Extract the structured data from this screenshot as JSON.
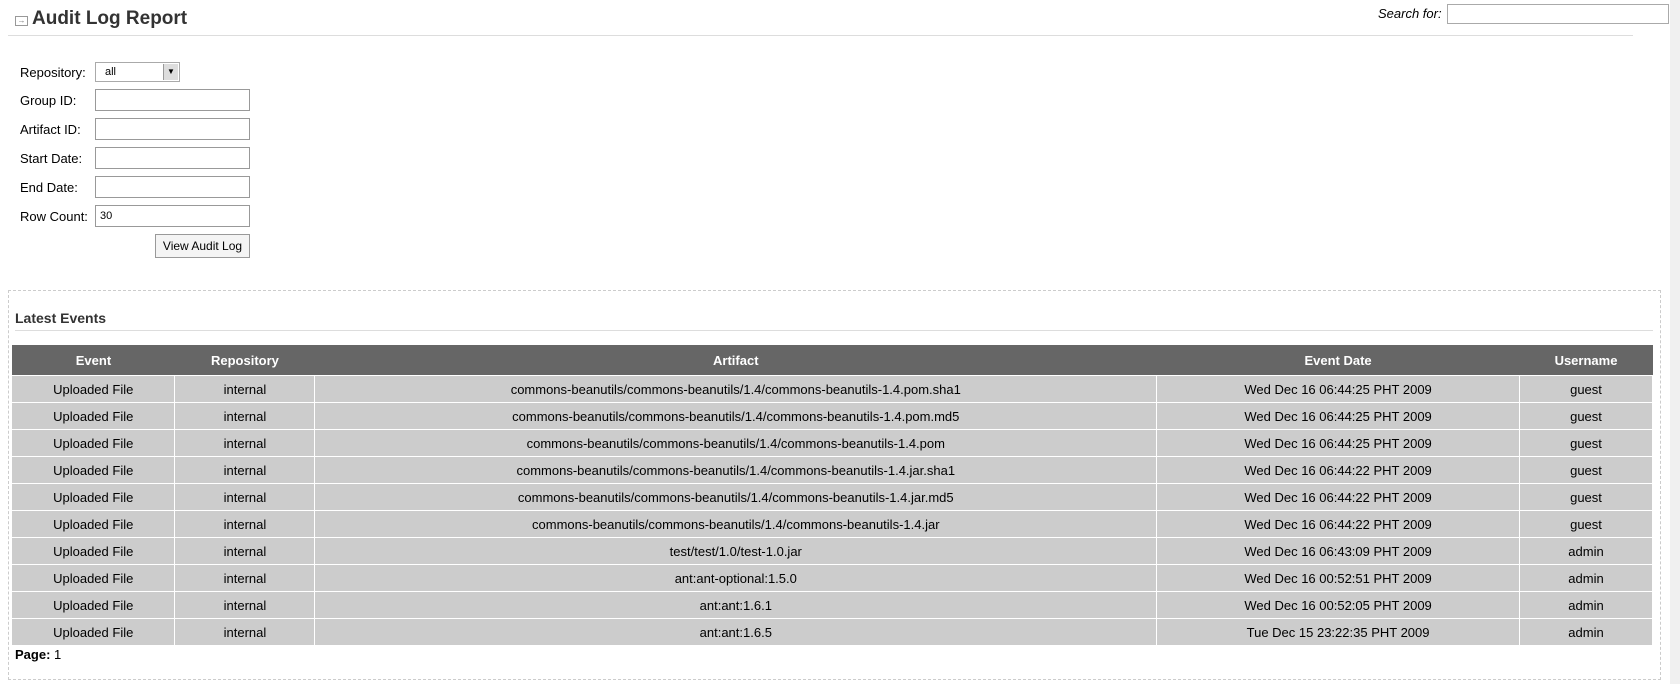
{
  "header": {
    "title": "Audit Log Report",
    "search_label": "Search for:",
    "search_value": ""
  },
  "form": {
    "repository_label": "Repository:",
    "repository_value": "all",
    "group_id_label": "Group ID:",
    "group_id_value": "",
    "artifact_id_label": "Artifact ID:",
    "artifact_id_value": "",
    "start_date_label": "Start Date:",
    "start_date_value": "",
    "end_date_label": "End Date:",
    "end_date_value": "",
    "row_count_label": "Row Count:",
    "row_count_value": "30",
    "submit_label": "View Audit Log"
  },
  "events": {
    "heading": "Latest Events",
    "columns": [
      "Event",
      "Repository",
      "Artifact",
      "Event Date",
      "Username"
    ],
    "rows": [
      [
        "Uploaded File",
        "internal",
        "commons-beanutils/commons-beanutils/1.4/commons-beanutils-1.4.pom.sha1",
        "Wed Dec 16 06:44:25 PHT 2009",
        "guest"
      ],
      [
        "Uploaded File",
        "internal",
        "commons-beanutils/commons-beanutils/1.4/commons-beanutils-1.4.pom.md5",
        "Wed Dec 16 06:44:25 PHT 2009",
        "guest"
      ],
      [
        "Uploaded File",
        "internal",
        "commons-beanutils/commons-beanutils/1.4/commons-beanutils-1.4.pom",
        "Wed Dec 16 06:44:25 PHT 2009",
        "guest"
      ],
      [
        "Uploaded File",
        "internal",
        "commons-beanutils/commons-beanutils/1.4/commons-beanutils-1.4.jar.sha1",
        "Wed Dec 16 06:44:22 PHT 2009",
        "guest"
      ],
      [
        "Uploaded File",
        "internal",
        "commons-beanutils/commons-beanutils/1.4/commons-beanutils-1.4.jar.md5",
        "Wed Dec 16 06:44:22 PHT 2009",
        "guest"
      ],
      [
        "Uploaded File",
        "internal",
        "commons-beanutils/commons-beanutils/1.4/commons-beanutils-1.4.jar",
        "Wed Dec 16 06:44:22 PHT 2009",
        "guest"
      ],
      [
        "Uploaded File",
        "internal",
        "test/test/1.0/test-1.0.jar",
        "Wed Dec 16 06:43:09 PHT 2009",
        "admin"
      ],
      [
        "Uploaded File",
        "internal",
        "ant:ant-optional:1.5.0",
        "Wed Dec 16 00:52:51 PHT 2009",
        "admin"
      ],
      [
        "Uploaded File",
        "internal",
        "ant:ant:1.6.1",
        "Wed Dec 16 00:52:05 PHT 2009",
        "admin"
      ],
      [
        "Uploaded File",
        "internal",
        "ant:ant:1.6.5",
        "Tue Dec 15 23:22:35 PHT 2009",
        "admin"
      ]
    ],
    "page_label": "Page:",
    "page_value": "1"
  }
}
